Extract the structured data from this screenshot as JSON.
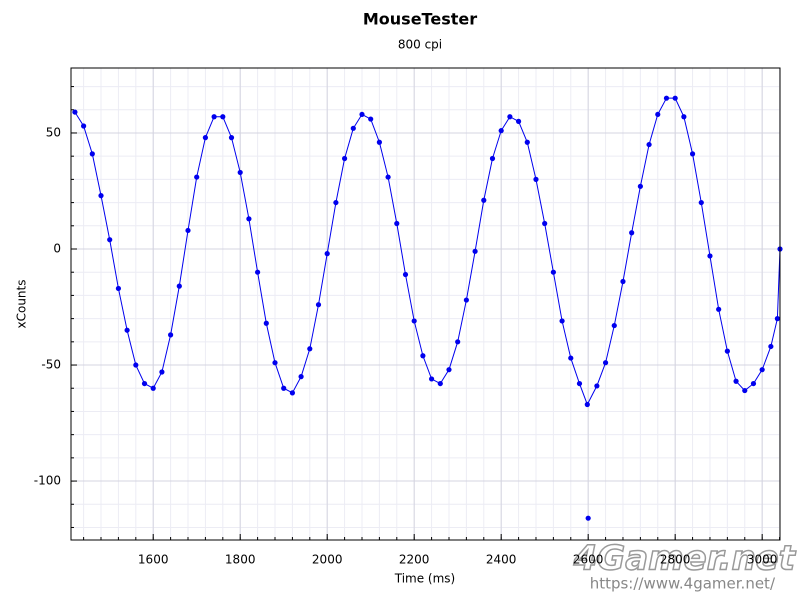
{
  "chart_data": {
    "type": "scatter",
    "title": "MouseTester",
    "subtitle": "800 cpi",
    "x_label": "Time (ms)",
    "y_label": "xCounts",
    "xlim": [
      1411,
      3041
    ],
    "ylim": [
      -125.4,
      78
    ],
    "xticks": [
      1600,
      1800,
      2000,
      2200,
      2400,
      2600,
      2800,
      3000
    ],
    "yticks": [
      -100,
      -50,
      0,
      50
    ],
    "grid": true,
    "series": [
      {
        "color": "#0000ee",
        "line": true,
        "x": [
          1420,
          1440,
          1460,
          1480,
          1500,
          1520,
          1540,
          1560,
          1580,
          1600,
          1620,
          1640,
          1660,
          1680,
          1700,
          1720,
          1740,
          1760,
          1780,
          1800,
          1820,
          1840,
          1860,
          1880,
          1900,
          1920,
          1940,
          1960,
          1980,
          2000,
          2020,
          2040,
          2060,
          2080,
          2100,
          2120,
          2140,
          2160,
          2180,
          2200,
          2220,
          2240,
          2260,
          2280,
          2300,
          2320,
          2340,
          2360,
          2380,
          2400,
          2420,
          2440,
          2460,
          2480,
          2500,
          2520,
          2540,
          2560,
          2580,
          2598,
          2620,
          2640,
          2660,
          2680,
          2700,
          2720,
          2740,
          2760,
          2780,
          2800,
          2820,
          2840,
          2860,
          2880,
          2900,
          2920,
          2940,
          2960,
          2980,
          3000,
          3020,
          3035,
          3041
        ],
        "values": [
          59,
          53,
          41,
          23,
          4,
          -17,
          -35,
          -50,
          -58,
          -60,
          -53,
          -37,
          -16,
          8,
          31,
          48,
          57,
          57,
          48,
          33,
          13,
          -10,
          -32,
          -49,
          -60,
          -62,
          -55,
          -43,
          -24,
          -2,
          20,
          39,
          52,
          58,
          56,
          46,
          31,
          11,
          -11,
          -31,
          -46,
          -56,
          -58,
          -52,
          -40,
          -22,
          -1,
          21,
          39,
          51,
          57,
          55,
          46,
          30,
          11,
          -10,
          -31,
          -47,
          -58,
          -67,
          -59,
          -49,
          -33,
          -14,
          7,
          27,
          45,
          58,
          65,
          65,
          57,
          41,
          20,
          -3,
          -26,
          -44,
          -57,
          -61,
          -58,
          -52,
          -42,
          -30,
          0
        ]
      },
      {
        "color": "#0000ee",
        "line": false,
        "x": [
          2600
        ],
        "values": [
          -116
        ]
      }
    ],
    "watermark": "4Gamer.net",
    "watermark_url": "https://www.4gamer.net/"
  }
}
